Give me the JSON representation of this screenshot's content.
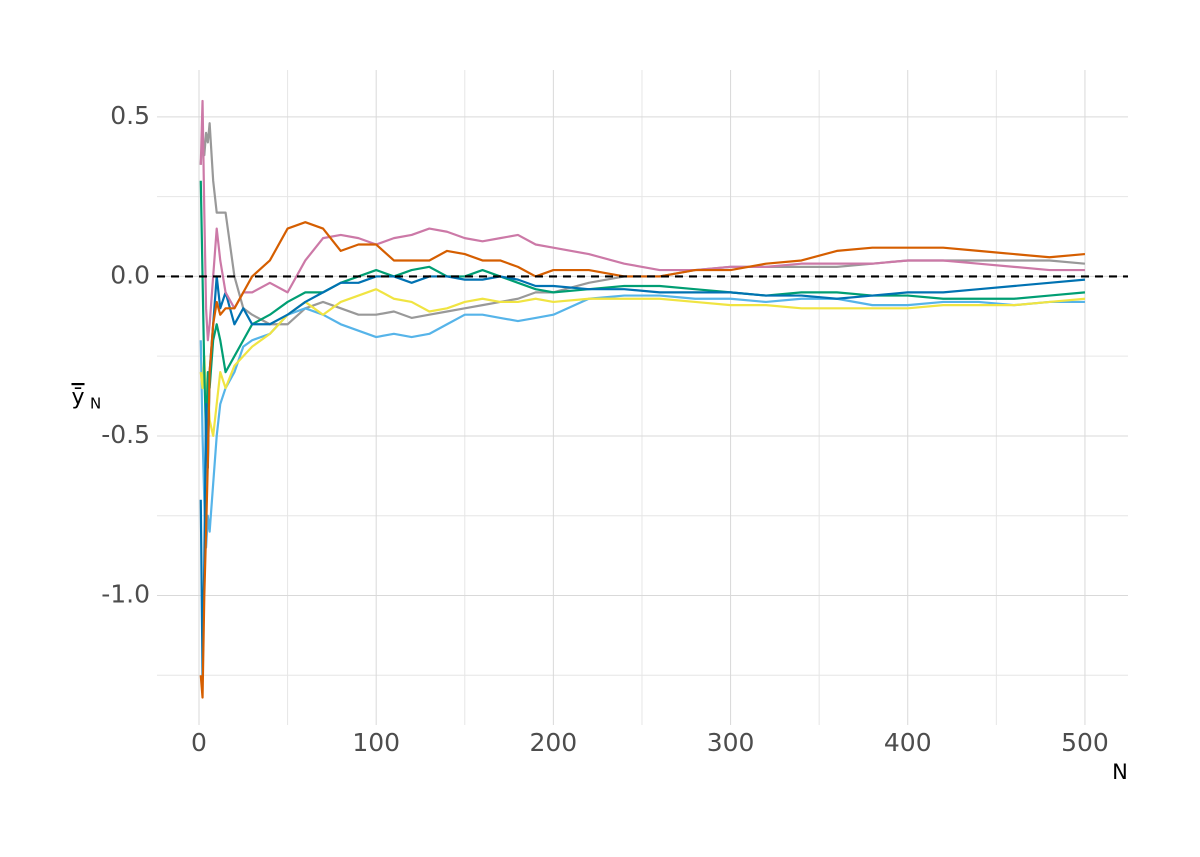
{
  "chart_data": {
    "type": "line",
    "xlabel": "N",
    "ylabel": "ȳ",
    "ylabel_subscript": "N",
    "x": [
      1,
      2,
      3,
      4,
      5,
      6,
      8,
      10,
      12,
      15,
      20,
      25,
      30,
      40,
      50,
      60,
      70,
      80,
      90,
      100,
      110,
      120,
      130,
      140,
      150,
      160,
      170,
      180,
      190,
      200,
      220,
      240,
      260,
      280,
      300,
      320,
      340,
      360,
      380,
      400,
      420,
      440,
      460,
      480,
      500
    ],
    "series": [
      {
        "color": "#999999",
        "values": [
          0.35,
          0.45,
          0.38,
          0.45,
          0.42,
          0.48,
          0.3,
          0.2,
          0.2,
          0.2,
          0.0,
          -0.1,
          -0.12,
          -0.15,
          -0.15,
          -0.1,
          -0.08,
          -0.1,
          -0.12,
          -0.12,
          -0.11,
          -0.13,
          -0.12,
          -0.11,
          -0.1,
          -0.09,
          -0.08,
          -0.07,
          -0.05,
          -0.05,
          -0.02,
          0.0,
          0.0,
          0.02,
          0.03,
          0.03,
          0.03,
          0.03,
          0.04,
          0.05,
          0.05,
          0.05,
          0.05,
          0.05,
          0.04
        ]
      },
      {
        "color": "#56B4E9",
        "values": [
          -0.2,
          -0.5,
          -0.7,
          -0.85,
          -0.75,
          -0.8,
          -0.65,
          -0.5,
          -0.4,
          -0.35,
          -0.3,
          -0.22,
          -0.2,
          -0.18,
          -0.12,
          -0.1,
          -0.12,
          -0.15,
          -0.17,
          -0.19,
          -0.18,
          -0.19,
          -0.18,
          -0.15,
          -0.12,
          -0.12,
          -0.13,
          -0.14,
          -0.13,
          -0.12,
          -0.07,
          -0.06,
          -0.06,
          -0.07,
          -0.07,
          -0.08,
          -0.07,
          -0.07,
          -0.09,
          -0.09,
          -0.08,
          -0.08,
          -0.09,
          -0.08,
          -0.08
        ]
      },
      {
        "color": "#F0E442",
        "values": [
          -0.3,
          -0.35,
          -0.25,
          -0.4,
          -0.35,
          -0.45,
          -0.5,
          -0.4,
          -0.3,
          -0.35,
          -0.28,
          -0.25,
          -0.22,
          -0.18,
          -0.12,
          -0.08,
          -0.12,
          -0.08,
          -0.06,
          -0.04,
          -0.07,
          -0.08,
          -0.11,
          -0.1,
          -0.08,
          -0.07,
          -0.08,
          -0.08,
          -0.07,
          -0.08,
          -0.07,
          -0.07,
          -0.07,
          -0.08,
          -0.09,
          -0.09,
          -0.1,
          -0.1,
          -0.1,
          -0.1,
          -0.09,
          -0.09,
          -0.09,
          -0.08,
          -0.07
        ]
      },
      {
        "color": "#009E73",
        "values": [
          0.3,
          0.0,
          -0.3,
          -0.5,
          -0.3,
          -0.35,
          -0.2,
          -0.15,
          -0.2,
          -0.3,
          -0.25,
          -0.2,
          -0.15,
          -0.12,
          -0.08,
          -0.05,
          -0.05,
          -0.02,
          0.0,
          0.02,
          0.0,
          0.02,
          0.03,
          0.0,
          0.0,
          0.02,
          0.0,
          -0.02,
          -0.04,
          -0.05,
          -0.04,
          -0.03,
          -0.03,
          -0.04,
          -0.05,
          -0.06,
          -0.05,
          -0.05,
          -0.06,
          -0.06,
          -0.07,
          -0.07,
          -0.07,
          -0.06,
          -0.05
        ]
      },
      {
        "color": "#0072B2",
        "values": [
          -0.7,
          -1.25,
          -0.9,
          -0.4,
          -0.6,
          -0.3,
          -0.15,
          0.0,
          -0.1,
          -0.05,
          -0.15,
          -0.1,
          -0.15,
          -0.15,
          -0.12,
          -0.08,
          -0.05,
          -0.02,
          -0.02,
          0.0,
          0.0,
          -0.02,
          0.0,
          0.0,
          -0.01,
          -0.01,
          0.0,
          -0.01,
          -0.03,
          -0.03,
          -0.04,
          -0.04,
          -0.05,
          -0.05,
          -0.05,
          -0.06,
          -0.06,
          -0.07,
          -0.06,
          -0.05,
          -0.05,
          -0.04,
          -0.03,
          -0.02,
          -0.01
        ]
      },
      {
        "color": "#CC79A7",
        "values": [
          0.35,
          0.55,
          0.2,
          -0.1,
          -0.2,
          -0.15,
          0.0,
          0.15,
          0.05,
          -0.05,
          -0.1,
          -0.05,
          -0.05,
          -0.02,
          -0.05,
          0.05,
          0.12,
          0.13,
          0.12,
          0.1,
          0.12,
          0.13,
          0.15,
          0.14,
          0.12,
          0.11,
          0.12,
          0.13,
          0.1,
          0.09,
          0.07,
          0.04,
          0.02,
          0.02,
          0.03,
          0.03,
          0.04,
          0.04,
          0.04,
          0.05,
          0.05,
          0.04,
          0.03,
          0.02,
          0.02
        ]
      },
      {
        "color": "#D55E00",
        "values": [
          -1.25,
          -1.32,
          -1.0,
          -0.8,
          -0.58,
          -0.3,
          -0.15,
          -0.08,
          -0.12,
          -0.1,
          -0.1,
          -0.05,
          0.0,
          0.05,
          0.15,
          0.17,
          0.15,
          0.08,
          0.1,
          0.1,
          0.05,
          0.05,
          0.05,
          0.08,
          0.07,
          0.05,
          0.05,
          0.03,
          0.0,
          0.02,
          0.02,
          0.0,
          0.0,
          0.02,
          0.02,
          0.04,
          0.05,
          0.08,
          0.09,
          0.09,
          0.09,
          0.08,
          0.07,
          0.06,
          0.07
        ]
      }
    ],
    "hline": 0,
    "xlim": [
      -23.7,
      524.3
    ],
    "ylim": [
      -1.406,
      0.647
    ],
    "xticks": [
      0,
      100,
      200,
      300,
      400,
      500
    ],
    "minor_xticks": [
      50,
      150,
      250,
      350,
      450
    ],
    "yticks": [
      {
        "value": -1.0,
        "label": "-1.0"
      },
      -0.5,
      {
        "value": 0.0,
        "label": "0.0"
      },
      0.5
    ],
    "minor_yticks": [
      -1.25,
      -0.75,
      -0.25,
      0.25
    ],
    "grid": true
  }
}
